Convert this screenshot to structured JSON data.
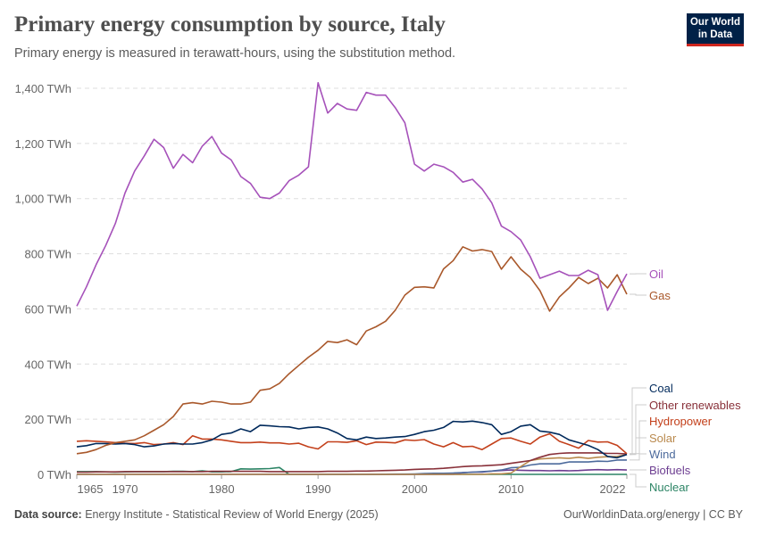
{
  "header": {
    "title": "Primary energy consumption by source, Italy",
    "subtitle": "Primary energy is measured in terawatt-hours, using the substitution method.",
    "logo": "Our World in Data"
  },
  "footer": {
    "source_label": "Data source:",
    "source": "Energy Institute - Statistical Review of World Energy (2025)",
    "right": "OurWorldinData.org/energy | CC BY"
  },
  "chart_data": {
    "type": "line",
    "title": "Primary energy consumption by source, Italy",
    "ylabel": "",
    "xlabel": "",
    "ylim": [
      0,
      1400
    ],
    "xlim": [
      1965,
      2022
    ],
    "grid": "horizontal dashed",
    "legend": "right (line-end labels)",
    "yticks": [
      0,
      200,
      400,
      600,
      800,
      1000,
      1200,
      1400
    ],
    "ytick_labels": [
      "0 TWh",
      "200 TWh",
      "400 TWh",
      "600 TWh",
      "800 TWh",
      "1,000 TWh",
      "1,200 TWh",
      "1,400 TWh"
    ],
    "xticks": [
      1965,
      1970,
      1980,
      1990,
      2000,
      2010,
      2022
    ],
    "xtick_labels": [
      "1965",
      "1970",
      "1980",
      "1990",
      "2000",
      "2010",
      "2022"
    ],
    "start_year": 1965,
    "series": [
      {
        "name": "Oil",
        "color": "#a652ba",
        "values": [
          610,
          680,
          760,
          830,
          910,
          1020,
          1100,
          1155,
          1215,
          1185,
          1110,
          1160,
          1130,
          1190,
          1225,
          1165,
          1140,
          1080,
          1055,
          1005,
          1000,
          1020,
          1065,
          1085,
          1115,
          1420,
          1310,
          1345,
          1325,
          1320,
          1385,
          1375,
          1375,
          1330,
          1275,
          1125,
          1100,
          1125,
          1115,
          1095,
          1060,
          1070,
          1035,
          985,
          900,
          880,
          850,
          789,
          711,
          724,
          737,
          721,
          721,
          740,
          724,
          595,
          663,
          727
        ]
      },
      {
        "name": "Gas",
        "color": "#a9582b",
        "values": [
          75,
          80,
          90,
          105,
          115,
          120,
          125,
          140,
          160,
          180,
          210,
          255,
          260,
          255,
          265,
          262,
          255,
          255,
          262,
          305,
          310,
          330,
          365,
          395,
          425,
          450,
          482,
          478,
          488,
          470,
          520,
          535,
          555,
          595,
          650,
          678,
          680,
          676,
          745,
          775,
          825,
          810,
          815,
          808,
          744,
          789,
          744,
          714,
          666,
          592,
          643,
          676,
          714,
          692,
          711,
          676,
          724,
          653
        ]
      },
      {
        "name": "Coal",
        "color": "#00295b",
        "values": [
          100,
          104,
          112,
          112,
          110,
          112,
          108,
          100,
          103,
          110,
          112,
          110,
          110,
          115,
          125,
          145,
          150,
          165,
          155,
          178,
          176,
          173,
          172,
          165,
          170,
          172,
          165,
          150,
          130,
          125,
          135,
          130,
          132,
          135,
          137,
          145,
          155,
          160,
          170,
          192,
          190,
          193,
          188,
          180,
          145,
          155,
          175,
          180,
          157,
          153,
          145,
          125,
          115,
          105,
          90,
          65,
          60,
          72
        ]
      },
      {
        "name": "Other renewables",
        "color": "#883039",
        "values": [
          8,
          8,
          9,
          9,
          9,
          10,
          10,
          10,
          10,
          10,
          10,
          10,
          10,
          10,
          11,
          11,
          11,
          11,
          11,
          11,
          10,
          10,
          10,
          10,
          10,
          10,
          11,
          11,
          11,
          12,
          12,
          13,
          14,
          15,
          16,
          18,
          19,
          20,
          22,
          25,
          28,
          30,
          31,
          33,
          35,
          40,
          45,
          50,
          62,
          72,
          76,
          78,
          78,
          78,
          78,
          76,
          76,
          74
        ]
      },
      {
        "name": "Hydropower",
        "color": "#c3401b",
        "values": [
          120,
          122,
          120,
          118,
          115,
          113,
          112,
          115,
          108,
          110,
          115,
          108,
          140,
          128,
          128,
          125,
          120,
          115,
          115,
          117,
          114,
          114,
          110,
          113,
          100,
          92,
          118,
          118,
          116,
          122,
          108,
          117,
          116,
          114,
          125,
          123,
          126,
          110,
          100,
          115,
          100,
          102,
          90,
          110,
          130,
          132,
          120,
          110,
          135,
          147,
          120,
          108,
          95,
          123,
          117,
          118,
          105,
          75
        ]
      },
      {
        "name": "Solar",
        "color": "#b9894d",
        "values": [
          0,
          0,
          0,
          0,
          0,
          0,
          0,
          0,
          0,
          0,
          0,
          0,
          0,
          0,
          0,
          0,
          0,
          0,
          0,
          0,
          0,
          0,
          0,
          0,
          0,
          0,
          0,
          0,
          0,
          0,
          0,
          0,
          0,
          0,
          0,
          0,
          0,
          0,
          0,
          0,
          0,
          0,
          0,
          2,
          2,
          5,
          28,
          50,
          56,
          58,
          60,
          58,
          62,
          58,
          62,
          64,
          65,
          72
        ]
      },
      {
        "name": "Wind",
        "color": "#4c6a9c",
        "values": [
          0,
          0,
          0,
          0,
          0,
          0,
          0,
          0,
          0,
          0,
          0,
          0,
          0,
          0,
          0,
          0,
          0,
          0,
          0,
          0,
          0,
          0,
          0,
          0,
          0,
          0,
          0,
          0,
          0,
          0,
          0,
          0,
          0.5,
          1,
          1,
          1.5,
          3,
          4,
          4,
          5,
          6,
          8,
          10,
          12,
          16,
          24,
          26,
          34,
          38,
          38,
          38,
          45,
          45,
          45,
          48,
          47,
          52,
          52
        ]
      },
      {
        "name": "Biofuels",
        "color": "#6d3e91",
        "values": [
          0,
          0,
          0,
          0,
          0,
          0,
          0,
          0,
          0,
          0,
          0,
          0,
          0,
          0,
          0,
          0,
          0,
          0,
          0,
          0,
          0,
          0,
          0,
          0,
          0,
          0,
          0,
          0,
          0,
          0,
          0,
          0,
          0,
          0,
          0,
          0,
          0,
          0,
          0,
          0,
          6,
          8,
          8,
          12,
          14,
          16,
          15,
          14,
          14,
          13,
          14,
          13,
          14,
          16,
          17,
          16,
          17,
          16
        ]
      },
      {
        "name": "Nuclear",
        "color": "#2c8465",
        "values": [
          10,
          10,
          10,
          9,
          8,
          9,
          10,
          10,
          10,
          10,
          11,
          11,
          10,
          13,
          9,
          9,
          10,
          20,
          19,
          20,
          21,
          25,
          0,
          0,
          0,
          0,
          0,
          0,
          0,
          0,
          0,
          0,
          0,
          0,
          0,
          0,
          0,
          0,
          0,
          0,
          0,
          0,
          0,
          0,
          0,
          0,
          0,
          0,
          0,
          0,
          0,
          0,
          0,
          0,
          0,
          0,
          0,
          0
        ]
      }
    ]
  }
}
